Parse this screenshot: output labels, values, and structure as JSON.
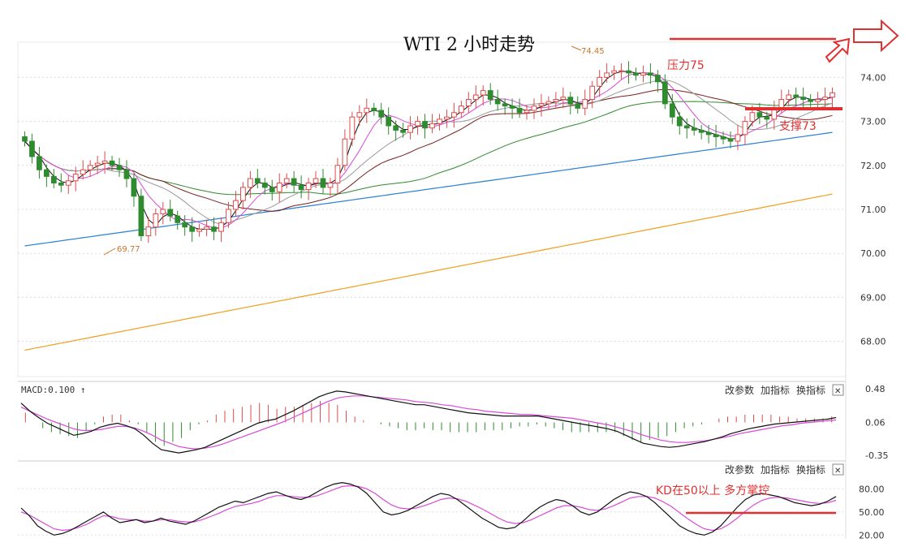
{
  "title": "WTI 2 小时走势",
  "annotations": {
    "resistance": "压力75",
    "support": "支撑73",
    "kd_note": "KD在50以上  多方掌控",
    "high_marker": "74.45",
    "low_marker": "69.77"
  },
  "panels": {
    "macd_label": "MACD:0.100 ↑",
    "btn_change": "改参数",
    "btn_add": "加指标",
    "btn_switch": "换指标",
    "btn_close": "✕"
  },
  "colors": {
    "up": "#e04a4a",
    "down": "#2e8b2e",
    "ma5": "#111111",
    "ma10": "#d84ad8",
    "ma20": "#999999",
    "ma30": "#7a1f1f",
    "ma60": "#2e8b2e",
    "ma120": "#2a7fd4",
    "ma250": "#f0a020",
    "annotation": "#e03030"
  },
  "chart_data": [
    {
      "type": "candlestick",
      "title": "WTI 2 小时走势",
      "y_ticks": [
        "74.00",
        "73.00",
        "72.00",
        "71.00",
        "70.00",
        "69.00",
        "68.00"
      ],
      "ylim": [
        67.2,
        74.8
      ],
      "n_bars": 112,
      "high": 74.45,
      "low": 69.77,
      "closes": [
        72.55,
        72.2,
        71.9,
        71.75,
        71.6,
        71.55,
        71.65,
        71.8,
        71.9,
        72.0,
        72.05,
        72.1,
        72.0,
        71.9,
        71.7,
        71.3,
        70.4,
        70.6,
        70.9,
        71.0,
        70.85,
        70.7,
        70.6,
        70.5,
        70.55,
        70.6,
        70.5,
        70.7,
        71.0,
        71.2,
        71.5,
        71.7,
        71.6,
        71.5,
        71.4,
        71.6,
        71.7,
        71.55,
        71.45,
        71.6,
        71.7,
        71.5,
        71.6,
        72.0,
        72.6,
        73.1,
        73.2,
        73.3,
        73.25,
        73.1,
        72.9,
        72.8,
        72.75,
        72.9,
        73.0,
        72.85,
        72.95,
        73.05,
        73.1,
        73.2,
        73.35,
        73.5,
        73.6,
        73.7,
        73.5,
        73.4,
        73.35,
        73.3,
        73.2,
        73.25,
        73.35,
        73.4,
        73.45,
        73.5,
        73.55,
        73.4,
        73.3,
        73.5,
        73.8,
        74.0,
        74.1,
        74.15,
        74.15,
        74.1,
        74.05,
        74.1,
        74.05,
        73.9,
        73.4,
        73.1,
        72.9,
        72.85,
        72.8,
        72.75,
        72.7,
        72.65,
        72.6,
        72.55,
        72.7,
        73.0,
        73.2,
        73.1,
        73.05,
        73.3,
        73.5,
        73.6,
        73.55,
        73.5,
        73.45,
        73.5,
        73.55,
        73.65
      ],
      "overlays": {
        "ma5": "black",
        "ma10": "magenta",
        "ma20": "grey",
        "ma30": "dark red",
        "ma60": "green",
        "ma120": [
          70.17,
          72.75
        ],
        "ma250": [
          67.8,
          71.35
        ]
      },
      "horizontal_lines": {
        "resistance": 75,
        "support": 73
      }
    },
    {
      "type": "bar",
      "title": "MACD:0.100",
      "y_ticks": [
        "0.48",
        "0.06",
        "-0.35"
      ],
      "ylim": [
        -0.4,
        0.55
      ],
      "series": [
        {
          "values": [
            0.3,
            0.2,
            0.12,
            0.05,
            0.0,
            -0.05,
            -0.1,
            -0.08,
            -0.05,
            0.0,
            0.03,
            0.05,
            0.02,
            -0.02,
            -0.1,
            -0.2,
            -0.28,
            -0.3,
            -0.32,
            -0.3,
            -0.28,
            -0.25,
            -0.2,
            -0.15,
            -0.1,
            -0.05,
            0.0,
            0.05,
            0.08,
            0.1,
            0.15,
            0.2,
            0.26,
            0.32,
            0.38,
            0.42,
            0.45,
            0.44,
            0.42,
            0.4,
            0.38,
            0.36,
            0.34,
            0.32,
            0.3,
            0.28,
            0.28,
            0.26,
            0.24,
            0.22,
            0.2,
            0.18,
            0.17,
            0.16,
            0.15,
            0.14,
            0.14,
            0.14,
            0.14,
            0.14,
            0.12,
            0.1,
            0.08,
            0.06,
            0.04,
            0.02,
            0.0,
            -0.02,
            -0.05,
            -0.1,
            -0.15,
            -0.2,
            -0.22,
            -0.24,
            -0.25,
            -0.24,
            -0.22,
            -0.2,
            -0.18,
            -0.15,
            -0.12,
            -0.08,
            -0.05,
            -0.02,
            0.0,
            0.02,
            0.04,
            0.05,
            0.06,
            0.07,
            0.08,
            0.09,
            0.1,
            0.12
          ]
        },
        {
          "values": [
            0.25,
            0.2,
            0.15,
            0.1,
            0.06,
            0.02,
            -0.02,
            -0.04,
            -0.04,
            -0.03,
            -0.01,
            0.01,
            0.01,
            -0.01,
            -0.05,
            -0.1,
            -0.16,
            -0.2,
            -0.24,
            -0.26,
            -0.27,
            -0.26,
            -0.24,
            -0.21,
            -0.17,
            -0.13,
            -0.09,
            -0.05,
            -0.01,
            0.03,
            0.07,
            0.12,
            0.17,
            0.22,
            0.27,
            0.32,
            0.36,
            0.38,
            0.39,
            0.39,
            0.38,
            0.37,
            0.36,
            0.35,
            0.34,
            0.32,
            0.31,
            0.3,
            0.28,
            0.27,
            0.25,
            0.23,
            0.22,
            0.2,
            0.19,
            0.18,
            0.17,
            0.16,
            0.16,
            0.15,
            0.14,
            0.13,
            0.12,
            0.11,
            0.09,
            0.07,
            0.05,
            0.03,
            0.0,
            -0.03,
            -0.06,
            -0.1,
            -0.13,
            -0.16,
            -0.18,
            -0.19,
            -0.19,
            -0.18,
            -0.17,
            -0.15,
            -0.13,
            -0.11,
            -0.08,
            -0.06,
            -0.04,
            -0.02,
            0.0,
            0.02,
            0.03,
            0.05,
            0.06,
            0.07,
            0.08,
            0.09
          ]
        },
        {
          "values": [
            0.1,
            0.0,
            -0.06,
            -0.1,
            -0.12,
            -0.14,
            -0.16,
            -0.08,
            -0.02,
            0.06,
            0.08,
            0.08,
            0.02,
            -0.02,
            -0.1,
            -0.2,
            -0.24,
            -0.2,
            -0.16,
            -0.08,
            -0.02,
            0.02,
            0.08,
            0.12,
            0.14,
            0.16,
            0.18,
            0.2,
            0.18,
            0.14,
            0.16,
            0.16,
            0.18,
            0.2,
            0.22,
            0.2,
            0.18,
            0.12,
            0.06,
            0.02,
            0.0,
            -0.02,
            -0.04,
            -0.06,
            -0.08,
            -0.08,
            -0.06,
            -0.08,
            -0.08,
            -0.1,
            -0.1,
            -0.1,
            -0.1,
            -0.08,
            -0.08,
            -0.08,
            -0.06,
            -0.04,
            -0.04,
            -0.02,
            -0.04,
            -0.06,
            -0.08,
            -0.1,
            -0.1,
            -0.1,
            -0.1,
            -0.1,
            -0.1,
            -0.14,
            -0.18,
            -0.2,
            -0.18,
            -0.16,
            -0.14,
            -0.1,
            -0.06,
            -0.04,
            -0.02,
            0.0,
            0.04,
            0.06,
            0.06,
            0.08,
            0.08,
            0.08,
            0.08,
            0.06,
            0.06,
            0.04,
            0.04,
            0.04,
            0.04,
            0.06
          ]
        }
      ]
    },
    {
      "type": "line",
      "title": "KD",
      "y_ticks": [
        "80.00",
        "50.00",
        "20.00"
      ],
      "ylim": [
        15,
        95
      ],
      "series": [
        {
          "values": [
            55,
            45,
            32,
            25,
            20,
            22,
            26,
            32,
            38,
            44,
            50,
            42,
            36,
            38,
            40,
            36,
            38,
            42,
            38,
            36,
            34,
            38,
            44,
            50,
            56,
            60,
            64,
            62,
            66,
            70,
            74,
            76,
            72,
            68,
            66,
            70,
            76,
            82,
            86,
            88,
            86,
            82,
            74,
            62,
            50,
            46,
            48,
            52,
            58,
            64,
            70,
            74,
            72,
            66,
            58,
            50,
            42,
            36,
            30,
            28,
            30,
            38,
            48,
            56,
            62,
            66,
            64,
            58,
            50,
            46,
            50,
            58,
            66,
            72,
            76,
            74,
            70,
            62,
            52,
            42,
            32,
            26,
            22,
            20,
            24,
            32,
            44,
            56,
            66,
            72,
            74,
            72,
            70,
            66,
            62,
            60,
            58,
            60,
            64,
            70
          ]
        },
        {
          "values": [
            50,
            46,
            40,
            34,
            28,
            26,
            27,
            30,
            34,
            40,
            45,
            44,
            41,
            40,
            40,
            38,
            38,
            40,
            40,
            38,
            37,
            37,
            40,
            44,
            48,
            53,
            57,
            59,
            61,
            64,
            68,
            71,
            71,
            70,
            69,
            69,
            71,
            75,
            79,
            83,
            84,
            83,
            80,
            74,
            66,
            59,
            55,
            54,
            55,
            58,
            62,
            66,
            68,
            67,
            64,
            59,
            54,
            48,
            42,
            37,
            35,
            36,
            40,
            45,
            50,
            55,
            58,
            58,
            56,
            53,
            52,
            54,
            58,
            63,
            68,
            70,
            70,
            68,
            63,
            57,
            49,
            41,
            34,
            28,
            26,
            28,
            34,
            42,
            51,
            59,
            65,
            68,
            69,
            68,
            66,
            64,
            62,
            61,
            62,
            65
          ]
        }
      ],
      "horizontal_lines": {
        "kd_50": 50
      }
    }
  ]
}
